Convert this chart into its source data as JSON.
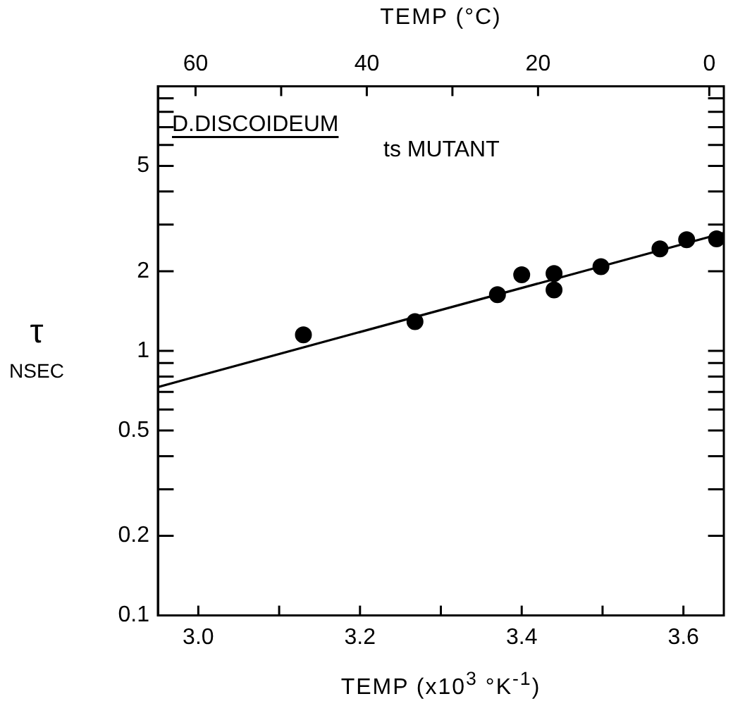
{
  "chart_data": {
    "type": "scatter",
    "xlabel": "TEMP (x10$^{3}$ °K$^{-1}$)",
    "x2label": "TEMP (°C)",
    "ylabel": "τ NSEC",
    "annotations": [
      "D.DISCOIDEUM",
      "ts MUTANT"
    ],
    "series": [
      {
        "color": "#000000",
        "marker": "circle",
        "x": [
          3.13,
          3.268,
          3.37,
          3.4,
          3.44,
          3.44,
          3.498,
          3.571,
          3.604,
          3.641
        ],
        "values": [
          1.15,
          1.29,
          1.63,
          1.94,
          1.96,
          1.7,
          2.08,
          2.43,
          2.63,
          2.65
        ]
      },
      {
        "type": "line",
        "color": "#000000",
        "marker": "none",
        "line_style": "solid",
        "x": [
          2.95,
          3.65
        ],
        "values": [
          0.73,
          2.79
        ]
      }
    ],
    "xlim": [
      2.95,
      3.65
    ],
    "xticks": [
      {
        "value": 3.0,
        "label": "3.0"
      },
      {
        "value": 3.1,
        "label": null
      },
      {
        "value": 3.2,
        "label": "3.2"
      },
      {
        "value": 3.3,
        "label": null
      },
      {
        "value": 3.4,
        "label": "3.4"
      },
      {
        "value": 3.5,
        "label": null
      },
      {
        "value": 3.6,
        "label": "3.6"
      }
    ],
    "x2lim": [
      64.4,
      -1.7
    ],
    "x2ticks": [
      60,
      {
        "value": 50,
        "label": null
      },
      40,
      {
        "value": 30,
        "label": null
      },
      20,
      0
    ],
    "ylim": [
      0.1,
      10
    ],
    "yticks": [
      0.1,
      0.2,
      {
        "value": 0.3,
        "label": null
      },
      {
        "value": 0.4,
        "label": null
      },
      0.5,
      {
        "value": 0.6,
        "label": null
      },
      {
        "value": 0.7,
        "label": null
      },
      {
        "value": 0.8,
        "label": null
      },
      {
        "value": 0.9,
        "label": null
      },
      1,
      2,
      {
        "value": 3,
        "label": null
      },
      {
        "value": 4,
        "label": null
      },
      5,
      {
        "value": 6,
        "label": null
      },
      {
        "value": 7,
        "label": null
      },
      {
        "value": 8,
        "label": null
      },
      {
        "value": 9,
        "label": null
      }
    ],
    "log": "y",
    "grid": false,
    "legend": false
  }
}
